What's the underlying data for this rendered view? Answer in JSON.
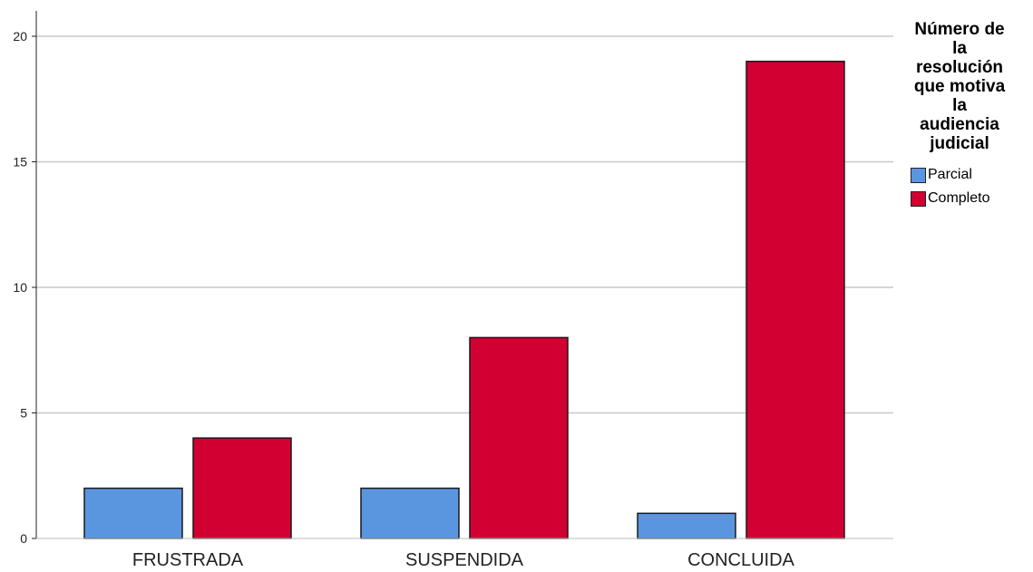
{
  "chart_data": {
    "type": "bar",
    "categories": [
      "FRUSTRADA",
      "SUSPENDIDA",
      "CONCLUIDA"
    ],
    "series": [
      {
        "name": "Parcial",
        "values": [
          2,
          2,
          1
        ],
        "color": "#5a96e0"
      },
      {
        "name": "Completo",
        "values": [
          4,
          8,
          19
        ],
        "color": "#d20032"
      }
    ],
    "legend_title_lines": [
      "Número de",
      "la",
      "resolución",
      "que motiva",
      "la",
      "audiencia",
      "judicial"
    ],
    "ylim": [
      0,
      20
    ],
    "yticks": [
      0,
      5,
      10,
      15,
      20
    ],
    "grid": true,
    "legend_position": "right"
  }
}
